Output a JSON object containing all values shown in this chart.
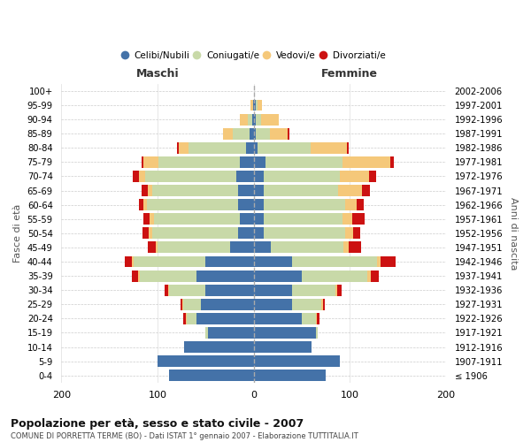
{
  "age_groups": [
    "100+",
    "95-99",
    "90-94",
    "85-89",
    "80-84",
    "75-79",
    "70-74",
    "65-69",
    "60-64",
    "55-59",
    "50-54",
    "45-49",
    "40-44",
    "35-39",
    "30-34",
    "25-29",
    "20-24",
    "15-19",
    "10-14",
    "5-9",
    "0-4"
  ],
  "birth_years": [
    "≤ 1906",
    "1907-1911",
    "1912-1916",
    "1917-1921",
    "1922-1926",
    "1927-1931",
    "1932-1936",
    "1937-1941",
    "1942-1946",
    "1947-1951",
    "1952-1956",
    "1957-1961",
    "1962-1966",
    "1967-1971",
    "1972-1976",
    "1977-1981",
    "1982-1986",
    "1987-1991",
    "1992-1996",
    "1997-2001",
    "2002-2006"
  ],
  "maschi": {
    "celibi": [
      0,
      1,
      2,
      4,
      8,
      14,
      18,
      16,
      16,
      14,
      16,
      25,
      50,
      60,
      50,
      55,
      60,
      48,
      72,
      100,
      88
    ],
    "coniugati": [
      0,
      0,
      4,
      18,
      60,
      85,
      95,
      90,
      95,
      90,
      90,
      75,
      75,
      58,
      38,
      18,
      10,
      2,
      0,
      0,
      0
    ],
    "vedovi": [
      0,
      2,
      8,
      10,
      10,
      16,
      6,
      4,
      4,
      4,
      3,
      2,
      2,
      2,
      1,
      1,
      1,
      0,
      0,
      0,
      0
    ],
    "divorziati": [
      0,
      0,
      0,
      0,
      2,
      2,
      7,
      7,
      4,
      7,
      7,
      8,
      7,
      7,
      4,
      2,
      2,
      0,
      0,
      0,
      0
    ]
  },
  "femmine": {
    "nubili": [
      0,
      2,
      2,
      2,
      4,
      12,
      10,
      10,
      10,
      10,
      10,
      18,
      40,
      50,
      40,
      40,
      50,
      65,
      60,
      90,
      75
    ],
    "coniugate": [
      0,
      2,
      6,
      15,
      55,
      80,
      80,
      78,
      85,
      82,
      85,
      75,
      88,
      68,
      45,
      30,
      15,
      2,
      0,
      0,
      0
    ],
    "vedove": [
      0,
      5,
      18,
      18,
      38,
      50,
      30,
      25,
      12,
      10,
      8,
      6,
      4,
      4,
      2,
      2,
      1,
      0,
      0,
      0,
      0
    ],
    "divorziate": [
      0,
      0,
      0,
      2,
      2,
      4,
      7,
      8,
      7,
      13,
      8,
      13,
      16,
      8,
      4,
      2,
      2,
      0,
      0,
      0,
      0
    ]
  },
  "colors": {
    "celibi": "#4472a8",
    "coniugati": "#c8d9a8",
    "vedovi": "#f5c87a",
    "divorziati": "#cc1111"
  },
  "xlim": 200,
  "title": "Popolazione per età, sesso e stato civile - 2007",
  "subtitle": "COMUNE DI PORRETTA TERME (BO) - Dati ISTAT 1° gennaio 2007 - Elaborazione TUTTITALIA.IT",
  "ylabel_left": "Fasce di età",
  "ylabel_right": "Anni di nascita",
  "xlabel_left": "Maschi",
  "xlabel_right": "Femmine"
}
